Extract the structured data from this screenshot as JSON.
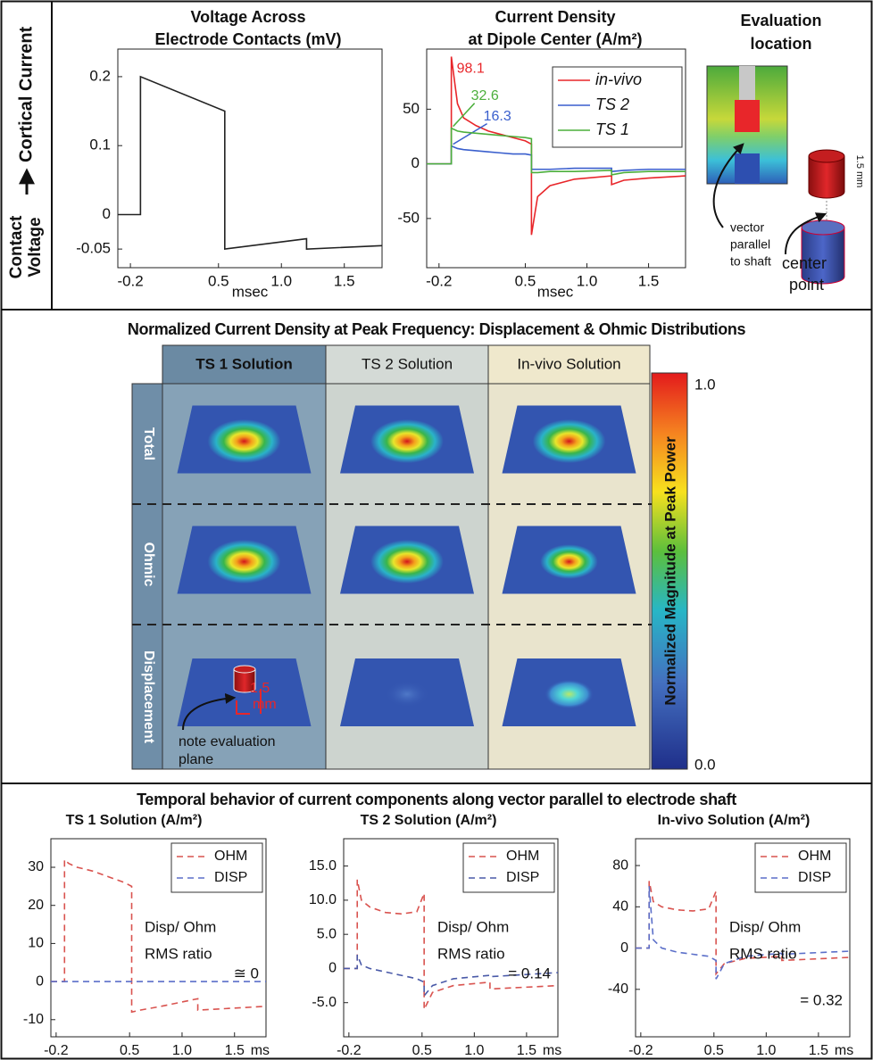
{
  "left_label": {
    "from": [
      "Contact",
      "Voltage"
    ],
    "to": "Cortical Current"
  },
  "evaluation": {
    "title": [
      "Evaluation",
      "location"
    ],
    "vector_note": [
      "vector",
      "parallel",
      "to shaft"
    ],
    "size": "1.5 mm",
    "center_note": [
      "center",
      "point"
    ]
  },
  "distributions": {
    "title": "Normalized Current Density at Peak Frequency: Displacement & Ohmic Distributions",
    "columns": [
      "TS 1 Solution",
      "TS 2 Solution",
      "In-vivo Solution"
    ],
    "rows": [
      "Total",
      "Ohmic",
      "Displacement"
    ],
    "size_note": [
      "1.5",
      "mm"
    ],
    "plane_note": [
      "note evaluation",
      "plane"
    ],
    "colorbar": {
      "label": "Normalized Magnitude at Peak Power",
      "max": "1.0",
      "min": "0.0"
    }
  },
  "temporal_title": "Temporal behavior of current components along vector parallel to electrode shaft",
  "chart_data": [
    {
      "type": "line",
      "title": [
        "Voltage Across",
        "Electrode Contacts (mV)"
      ],
      "x_label": "msec",
      "x": [
        -0.3,
        -0.12,
        -0.12,
        0.55,
        0.55,
        1.2,
        1.2,
        1.8
      ],
      "series": [
        {
          "color": "#222222",
          "values": [
            0,
            0,
            0.2,
            0.15,
            -0.05,
            -0.035,
            -0.05,
            -0.045
          ]
        }
      ],
      "xlim": [
        -0.3,
        1.8
      ],
      "ylim": [
        -0.077,
        0.24
      ],
      "xticks": [
        -0.2,
        0.5,
        {
          "value": 1,
          "label": "1.0"
        },
        1.5
      ],
      "yticks": [
        0.2,
        0.1,
        0,
        -0.05
      ]
    },
    {
      "type": "line",
      "title": [
        "Current Density",
        "at Dipole Center (A/m²)"
      ],
      "x_label": "msec",
      "x": [
        -0.3,
        -0.1,
        -0.1,
        -0.05,
        0,
        0.1,
        0.2,
        0.3,
        0.4,
        0.5,
        0.55,
        0.55,
        0.6,
        0.7,
        0.9,
        1.2,
        1.2,
        1.3,
        1.5,
        1.8
      ],
      "series": [
        {
          "name": "in-vivo",
          "color": "#e8262a",
          "values": [
            0,
            0,
            98.1,
            55,
            42,
            35,
            30,
            27,
            24,
            21,
            18,
            -65,
            -30,
            -20,
            -14,
            -11,
            -19,
            -15,
            -13,
            -11
          ]
        },
        {
          "name": "TS 2",
          "color": "#3a5fcd",
          "values": [
            0,
            0,
            16.3,
            14,
            13,
            12,
            11,
            10,
            9,
            9,
            8,
            -5,
            -5,
            -5,
            -4,
            -4,
            -7,
            -6,
            -5,
            -5
          ]
        },
        {
          "name": "TS 1",
          "color": "#4caf3c",
          "values": [
            0,
            0,
            32.6,
            30,
            29,
            28,
            27,
            26,
            25,
            24,
            23,
            -8,
            -8,
            -7,
            -7,
            -6,
            -10,
            -8,
            -7,
            -7
          ]
        }
      ],
      "label_peaks": true,
      "legend": "upper right",
      "xlim": [
        -0.3,
        1.8
      ],
      "ylim": [
        -95,
        105
      ],
      "xticks": [
        -0.2,
        0.5,
        {
          "value": 1,
          "label": "1.0"
        },
        1.5
      ],
      "yticks": [
        50,
        0,
        -50
      ]
    },
    {
      "type": "line",
      "title": [
        "TS 1 Solution (A/m²)"
      ],
      "x_label": "ms",
      "line_style": "dashed",
      "legend": "upper right",
      "annotations": [
        "Disp/ Ohm",
        "RMS ratio",
        "≅ 0"
      ],
      "x": [
        -0.25,
        -0.12,
        -0.12,
        -0.08,
        0,
        0.15,
        0.3,
        0.45,
        0.52,
        0.52,
        0.6,
        0.8,
        1.15,
        1.15,
        1.8
      ],
      "series": [
        {
          "name": "OHM",
          "color": "#d9534f",
          "values": [
            0,
            0,
            32,
            31,
            30,
            29,
            27.5,
            26,
            25,
            -8,
            -7.5,
            -6.5,
            -4.5,
            -7.5,
            -6.5
          ]
        },
        {
          "name": "DISP",
          "color": "#5b6fc9",
          "values": [
            0,
            0,
            0,
            0,
            0,
            0,
            0,
            0,
            0,
            0,
            0,
            0,
            0,
            0,
            0
          ]
        }
      ],
      "xlim": [
        -0.25,
        1.8
      ],
      "ylim": [
        -14.5,
        37.5
      ],
      "xticks": [
        -0.2,
        0.5,
        {
          "value": 1,
          "label": "1.0"
        },
        1.5
      ],
      "yticks": [
        30,
        20,
        10,
        0,
        -10
      ]
    },
    {
      "type": "line",
      "title": [
        "TS 2 Solution (A/m²)"
      ],
      "x_label": "ms",
      "line_style": "dashed",
      "legend": "upper right",
      "annotations": [
        "Disp/ Ohm",
        "RMS ratio",
        "= 0.14"
      ],
      "x": [
        -0.25,
        -0.12,
        -0.12,
        -0.08,
        0,
        0.15,
        0.3,
        0.45,
        0.52,
        0.52,
        0.6,
        0.8,
        1.15,
        1.15,
        1.8
      ],
      "series": [
        {
          "name": "OHM",
          "color": "#d9534f",
          "values": [
            0,
            0,
            13,
            10,
            9,
            8.2,
            8,
            8.3,
            11,
            -6,
            -3.5,
            -2.5,
            -2,
            -3,
            -2.5
          ]
        },
        {
          "name": "DISP",
          "color": "#4a5aa8",
          "values": [
            0,
            0,
            2,
            0.5,
            0,
            -0.5,
            -1,
            -1.5,
            -2,
            -4,
            -2.5,
            -1.5,
            -1,
            -1.2,
            -0.6
          ]
        }
      ],
      "xlim": [
        -0.25,
        1.8
      ],
      "ylim": [
        -10,
        19
      ],
      "xticks": [
        -0.2,
        0.5,
        {
          "value": 1,
          "label": "1.0"
        },
        1.5
      ],
      "yticks": [
        {
          "value": 15,
          "label": "15.0"
        },
        {
          "value": 10,
          "label": "10.0"
        },
        {
          "value": 5,
          "label": "5.0"
        },
        0,
        {
          "value": -5,
          "label": "-5.0"
        }
      ]
    },
    {
      "type": "line",
      "title": [
        "In-vivo Solution (A/m²)"
      ],
      "x_label": "ms",
      "line_style": "dashed",
      "legend": "upper right",
      "annotations": [
        "Disp/ Ohm",
        "RMS ratio",
        "= 0.32"
      ],
      "x": [
        -0.25,
        -0.12,
        -0.12,
        -0.08,
        0,
        0.15,
        0.3,
        0.45,
        0.52,
        0.52,
        0.6,
        0.8,
        1.15,
        1.15,
        1.8
      ],
      "series": [
        {
          "name": "OHM",
          "color": "#d9534f",
          "values": [
            0,
            0,
            65,
            45,
            40,
            37,
            36,
            38,
            55,
            -25,
            -15,
            -10,
            -8,
            -12,
            -9
          ]
        },
        {
          "name": "DISP",
          "color": "#5b6fc9",
          "values": [
            0,
            0,
            60,
            8,
            0,
            -4,
            -6,
            -8,
            -12,
            -30,
            -15,
            -8,
            -5,
            -6,
            -3
          ]
        }
      ],
      "xlim": [
        -0.25,
        1.8
      ],
      "ylim": [
        -86,
        106
      ],
      "xticks": [
        -0.2,
        0.5,
        {
          "value": 1,
          "label": "1.0"
        },
        1.5
      ],
      "yticks": [
        80,
        40,
        0,
        -40
      ]
    }
  ]
}
